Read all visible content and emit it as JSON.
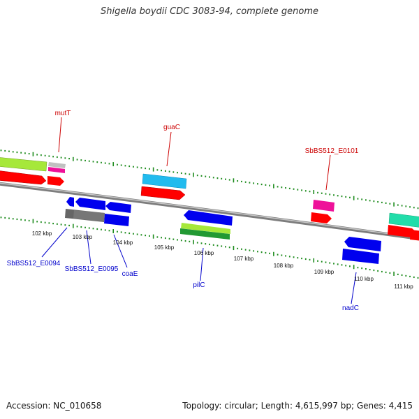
{
  "title": "Shigella boydii CDC 3083-94, complete genome",
  "footer": {
    "accession_label": "Accession:",
    "accession": "NC_010658",
    "topology_label": "Topology:",
    "topology": "circular",
    "length_label": "Length:",
    "length": "4,615,997 bp",
    "genes_label": "Genes:",
    "genes": "4,415"
  },
  "colors": {
    "backbone": "#8a8a8a",
    "tick": "#1e8c1e",
    "forward_label": "#cc0000",
    "reverse_label": "#0000cc",
    "red_feature": "#ff0000",
    "blue_feature": "#0000ee",
    "lime_feature": "#a6e83a",
    "cyan_feature": "#22bbee",
    "magenta_feature": "#ee1199",
    "grey_feature": "#666666",
    "teal_feature": "#22ddaa",
    "green_feature": "#229933"
  },
  "scale": {
    "unit": "kbp",
    "labels": [
      "102 kbp",
      "103 kbp",
      "104 kbp",
      "105 kbp",
      "106 kbp",
      "107 kbp",
      "108 kbp",
      "109 kbp",
      "110 kbp",
      "111 kbp"
    ]
  },
  "gene_labels": {
    "forward": [
      "mutT",
      "guaC",
      "SbBS512_E0101"
    ],
    "reverse": [
      "SbBS512_E0094",
      "SbBS512_E0095",
      "coaE",
      "pilC",
      "nadC"
    ]
  }
}
